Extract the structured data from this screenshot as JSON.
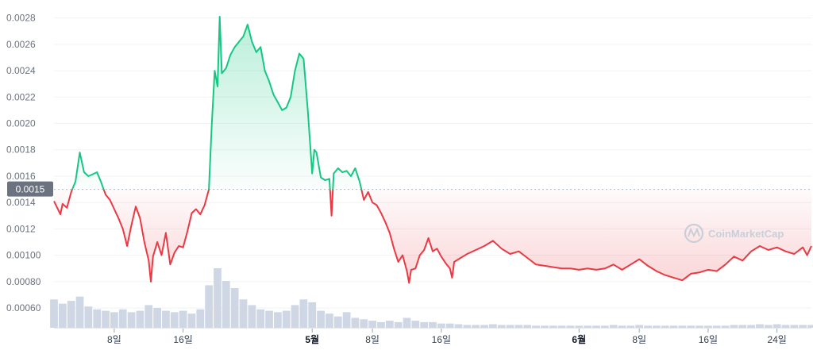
{
  "watermark": "CoinMarketCap",
  "colors": {
    "up": "#16c784",
    "down": "#ea3943",
    "volume": "#cfd6e4",
    "grid": "#eff2f5",
    "baseline": "#b0b8c5",
    "baseline_label_bg": "#6b7280"
  },
  "chart_data": {
    "type": "line",
    "title": "",
    "xlabel": "",
    "ylabel": "",
    "ylim": [
      0.00042,
      0.0029
    ],
    "baseline": 0.0015,
    "baseline_label": "0.0015",
    "y_ticks": [
      {
        "value": 0.0006,
        "label": "0.00060"
      },
      {
        "value": 0.0008,
        "label": "0.00080"
      },
      {
        "value": 0.001,
        "label": "0.00100"
      },
      {
        "value": 0.0012,
        "label": "0.0012"
      },
      {
        "value": 0.0014,
        "label": "0.0014"
      },
      {
        "value": 0.0016,
        "label": "0.0016"
      },
      {
        "value": 0.0018,
        "label": "0.0018"
      },
      {
        "value": 0.002,
        "label": "0.0020"
      },
      {
        "value": 0.0022,
        "label": "0.0022"
      },
      {
        "value": 0.0024,
        "label": "0.0024"
      },
      {
        "value": 0.0026,
        "label": "0.0026"
      },
      {
        "value": 0.0028,
        "label": "0.0028"
      }
    ],
    "x_start": "2023-04-01",
    "x_end": "2023-06-28",
    "x_ticks": [
      {
        "date": "2023-04-08",
        "label": "8일",
        "major": false
      },
      {
        "date": "2023-04-16",
        "label": "16일",
        "major": false
      },
      {
        "date": "2023-05-01",
        "label": "5월",
        "major": true
      },
      {
        "date": "2023-05-08",
        "label": "8일",
        "major": false
      },
      {
        "date": "2023-05-16",
        "label": "16일",
        "major": false
      },
      {
        "date": "2023-06-01",
        "label": "6월",
        "major": true
      },
      {
        "date": "2023-06-08",
        "label": "8일",
        "major": false
      },
      {
        "date": "2023-06-16",
        "label": "16일",
        "major": false
      },
      {
        "date": "2023-06-24",
        "label": "24일",
        "major": false
      }
    ],
    "series": [
      {
        "data": [
          [
            "2023-04-01",
            0.00141
          ],
          [
            "2023-04-01T18:00",
            0.00131
          ],
          [
            "2023-04-02",
            0.00139
          ],
          [
            "2023-04-02T12:00",
            0.00136
          ],
          [
            "2023-04-03",
            0.00148
          ],
          [
            "2023-04-03T12:00",
            0.00156
          ],
          [
            "2023-04-04",
            0.00178
          ],
          [
            "2023-04-04T12:00",
            0.00163
          ],
          [
            "2023-04-05",
            0.0016
          ],
          [
            "2023-04-06",
            0.00163
          ],
          [
            "2023-04-06T12:00",
            0.00155
          ],
          [
            "2023-04-07",
            0.00146
          ],
          [
            "2023-04-07T12:00",
            0.00142
          ],
          [
            "2023-04-08",
            0.00135
          ],
          [
            "2023-04-08T12:00",
            0.00128
          ],
          [
            "2023-04-09",
            0.0012
          ],
          [
            "2023-04-09T12:00",
            0.00107
          ],
          [
            "2023-04-10",
            0.00123
          ],
          [
            "2023-04-10T12:00",
            0.00137
          ],
          [
            "2023-04-11",
            0.00128
          ],
          [
            "2023-04-11T12:00",
            0.0011
          ],
          [
            "2023-04-12",
            0.00096
          ],
          [
            "2023-04-12T06:00",
            0.0008
          ],
          [
            "2023-04-12T12:00",
            0.00099
          ],
          [
            "2023-04-13",
            0.0011
          ],
          [
            "2023-04-13T12:00",
            0.001
          ],
          [
            "2023-04-14",
            0.00117
          ],
          [
            "2023-04-14T12:00",
            0.00093
          ],
          [
            "2023-04-15",
            0.00102
          ],
          [
            "2023-04-15T12:00",
            0.00107
          ],
          [
            "2023-04-16",
            0.00106
          ],
          [
            "2023-04-16T12:00",
            0.00118
          ],
          [
            "2023-04-17",
            0.00132
          ],
          [
            "2023-04-17T12:00",
            0.00135
          ],
          [
            "2023-04-18",
            0.00131
          ],
          [
            "2023-04-18T12:00",
            0.00138
          ],
          [
            "2023-04-19",
            0.0015
          ],
          [
            "2023-04-19T08:00",
            0.002
          ],
          [
            "2023-04-19T16:00",
            0.0024
          ],
          [
            "2023-04-20",
            0.00228
          ],
          [
            "2023-04-20T06:00",
            0.00281
          ],
          [
            "2023-04-20T12:00",
            0.00238
          ],
          [
            "2023-04-21",
            0.00242
          ],
          [
            "2023-04-21T12:00",
            0.00252
          ],
          [
            "2023-04-22",
            0.00258
          ],
          [
            "2023-04-22T12:00",
            0.00262
          ],
          [
            "2023-04-23",
            0.00266
          ],
          [
            "2023-04-23T12:00",
            0.00275
          ],
          [
            "2023-04-24",
            0.00262
          ],
          [
            "2023-04-24T12:00",
            0.00254
          ],
          [
            "2023-04-25",
            0.00258
          ],
          [
            "2023-04-25T12:00",
            0.0024
          ],
          [
            "2023-04-26",
            0.00232
          ],
          [
            "2023-04-26T12:00",
            0.00222
          ],
          [
            "2023-04-27",
            0.00216
          ],
          [
            "2023-04-27T12:00",
            0.0021
          ],
          [
            "2023-04-28",
            0.00212
          ],
          [
            "2023-04-28T12:00",
            0.0022
          ],
          [
            "2023-04-29",
            0.0024
          ],
          [
            "2023-04-29T12:00",
            0.00253
          ],
          [
            "2023-04-30",
            0.00249
          ],
          [
            "2023-04-30T12:00",
            0.00209
          ],
          [
            "2023-05-01",
            0.00162
          ],
          [
            "2023-05-01T06:00",
            0.0018
          ],
          [
            "2023-05-01T12:00",
            0.00178
          ],
          [
            "2023-05-02",
            0.00159
          ],
          [
            "2023-05-02T12:00",
            0.00157
          ],
          [
            "2023-05-03",
            0.00158
          ],
          [
            "2023-05-03T06:00",
            0.0013
          ],
          [
            "2023-05-03T12:00",
            0.00162
          ],
          [
            "2023-05-04",
            0.00166
          ],
          [
            "2023-05-04T12:00",
            0.00163
          ],
          [
            "2023-05-05",
            0.00164
          ],
          [
            "2023-05-05T12:00",
            0.0016
          ],
          [
            "2023-05-06",
            0.00166
          ],
          [
            "2023-05-06T12:00",
            0.00156
          ],
          [
            "2023-05-07",
            0.00142
          ],
          [
            "2023-05-07T12:00",
            0.00148
          ],
          [
            "2023-05-08",
            0.0014
          ],
          [
            "2023-05-08T12:00",
            0.00138
          ],
          [
            "2023-05-09",
            0.00132
          ],
          [
            "2023-05-09T12:00",
            0.00125
          ],
          [
            "2023-05-10",
            0.00117
          ],
          [
            "2023-05-10T12:00",
            0.00105
          ],
          [
            "2023-05-11",
            0.00095
          ],
          [
            "2023-05-11T12:00",
            0.001
          ],
          [
            "2023-05-12",
            0.00088
          ],
          [
            "2023-05-12T06:00",
            0.00079
          ],
          [
            "2023-05-12T12:00",
            0.00089
          ],
          [
            "2023-05-13",
            0.0009
          ],
          [
            "2023-05-13T12:00",
            0.001
          ],
          [
            "2023-05-14",
            0.00104
          ],
          [
            "2023-05-14T12:00",
            0.00113
          ],
          [
            "2023-05-15",
            0.00103
          ],
          [
            "2023-05-15T12:00",
            0.00105
          ],
          [
            "2023-05-16",
            0.00099
          ],
          [
            "2023-05-16T12:00",
            0.00094
          ],
          [
            "2023-05-17",
            0.0009
          ],
          [
            "2023-05-17T06:00",
            0.00083
          ],
          [
            "2023-05-17T12:00",
            0.00095
          ],
          [
            "2023-05-18",
            0.00097
          ],
          [
            "2023-05-18T12:00",
            0.00099
          ],
          [
            "2023-05-19",
            0.00101
          ],
          [
            "2023-05-20",
            0.00104
          ],
          [
            "2023-05-21",
            0.00107
          ],
          [
            "2023-05-22",
            0.00111
          ],
          [
            "2023-05-23",
            0.00105
          ],
          [
            "2023-05-24",
            0.00101
          ],
          [
            "2023-05-25",
            0.00103
          ],
          [
            "2023-05-26",
            0.00098
          ],
          [
            "2023-05-27",
            0.00093
          ],
          [
            "2023-05-28",
            0.00092
          ],
          [
            "2023-05-29",
            0.00091
          ],
          [
            "2023-05-30",
            0.0009
          ],
          [
            "2023-05-31",
            0.0009
          ],
          [
            "2023-06-01",
            0.00089
          ],
          [
            "2023-06-02",
            0.0009
          ],
          [
            "2023-06-03",
            0.00089
          ],
          [
            "2023-06-04",
            0.0009
          ],
          [
            "2023-06-05",
            0.00093
          ],
          [
            "2023-06-06",
            0.00089
          ],
          [
            "2023-06-07",
            0.00093
          ],
          [
            "2023-06-08",
            0.00097
          ],
          [
            "2023-06-09",
            0.00092
          ],
          [
            "2023-06-10",
            0.00088
          ],
          [
            "2023-06-11",
            0.00085
          ],
          [
            "2023-06-12",
            0.00083
          ],
          [
            "2023-06-13",
            0.00081
          ],
          [
            "2023-06-14",
            0.00086
          ],
          [
            "2023-06-15",
            0.00087
          ],
          [
            "2023-06-16",
            0.00089
          ],
          [
            "2023-06-17",
            0.00088
          ],
          [
            "2023-06-18",
            0.00093
          ],
          [
            "2023-06-19",
            0.00099
          ],
          [
            "2023-06-20",
            0.00096
          ],
          [
            "2023-06-21",
            0.00103
          ],
          [
            "2023-06-22",
            0.00107
          ],
          [
            "2023-06-23",
            0.00104
          ],
          [
            "2023-06-24",
            0.00106
          ],
          [
            "2023-06-25",
            0.00103
          ],
          [
            "2023-06-26",
            0.00101
          ],
          [
            "2023-06-27",
            0.00106
          ],
          [
            "2023-06-27T12:00",
            0.001
          ],
          [
            "2023-06-28",
            0.00107
          ]
        ]
      }
    ],
    "volume": [
      [
        "2023-04-01",
        0.2
      ],
      [
        "2023-04-02",
        0.17
      ],
      [
        "2023-04-03",
        0.19
      ],
      [
        "2023-04-04",
        0.22
      ],
      [
        "2023-04-05",
        0.15
      ],
      [
        "2023-04-06",
        0.13
      ],
      [
        "2023-04-07",
        0.12
      ],
      [
        "2023-04-08",
        0.11
      ],
      [
        "2023-04-09",
        0.13
      ],
      [
        "2023-04-10",
        0.11
      ],
      [
        "2023-04-11",
        0.12
      ],
      [
        "2023-04-12",
        0.16
      ],
      [
        "2023-04-13",
        0.14
      ],
      [
        "2023-04-14",
        0.12
      ],
      [
        "2023-04-15",
        0.11
      ],
      [
        "2023-04-16",
        0.12
      ],
      [
        "2023-04-17",
        0.1
      ],
      [
        "2023-04-18",
        0.13
      ],
      [
        "2023-04-19",
        0.3
      ],
      [
        "2023-04-20",
        0.42
      ],
      [
        "2023-04-21",
        0.33
      ],
      [
        "2023-04-22",
        0.28
      ],
      [
        "2023-04-23",
        0.2
      ],
      [
        "2023-04-24",
        0.16
      ],
      [
        "2023-04-25",
        0.13
      ],
      [
        "2023-04-26",
        0.12
      ],
      [
        "2023-04-27",
        0.11
      ],
      [
        "2023-04-28",
        0.12
      ],
      [
        "2023-04-29",
        0.16
      ],
      [
        "2023-04-30",
        0.2
      ],
      [
        "2023-05-01",
        0.18
      ],
      [
        "2023-05-02",
        0.12
      ],
      [
        "2023-05-03",
        0.1
      ],
      [
        "2023-05-04",
        0.08
      ],
      [
        "2023-05-05",
        0.11
      ],
      [
        "2023-05-06",
        0.07
      ],
      [
        "2023-05-07",
        0.06
      ],
      [
        "2023-05-08",
        0.05
      ],
      [
        "2023-05-09",
        0.04
      ],
      [
        "2023-05-10",
        0.05
      ],
      [
        "2023-05-11",
        0.04
      ],
      [
        "2023-05-12",
        0.07
      ],
      [
        "2023-05-13",
        0.05
      ],
      [
        "2023-05-14",
        0.04
      ],
      [
        "2023-05-15",
        0.04
      ],
      [
        "2023-05-16",
        0.03
      ],
      [
        "2023-05-17",
        0.03
      ],
      [
        "2023-05-18",
        0.025
      ],
      [
        "2023-05-19",
        0.02
      ],
      [
        "2023-05-20",
        0.02
      ],
      [
        "2023-05-21",
        0.02
      ],
      [
        "2023-05-22",
        0.025
      ],
      [
        "2023-05-23",
        0.02
      ],
      [
        "2023-05-24",
        0.02
      ],
      [
        "2023-05-25",
        0.02
      ],
      [
        "2023-05-26",
        0.02
      ],
      [
        "2023-05-27",
        0.015
      ],
      [
        "2023-05-28",
        0.015
      ],
      [
        "2023-05-29",
        0.015
      ],
      [
        "2023-05-30",
        0.015
      ],
      [
        "2023-05-31",
        0.015
      ],
      [
        "2023-06-01",
        0.015
      ],
      [
        "2023-06-02",
        0.015
      ],
      [
        "2023-06-03",
        0.015
      ],
      [
        "2023-06-04",
        0.015
      ],
      [
        "2023-06-05",
        0.02
      ],
      [
        "2023-06-06",
        0.015
      ],
      [
        "2023-06-07",
        0.015
      ],
      [
        "2023-06-08",
        0.02
      ],
      [
        "2023-06-09",
        0.015
      ],
      [
        "2023-06-10",
        0.015
      ],
      [
        "2023-06-11",
        0.015
      ],
      [
        "2023-06-12",
        0.015
      ],
      [
        "2023-06-13",
        0.015
      ],
      [
        "2023-06-14",
        0.015
      ],
      [
        "2023-06-15",
        0.015
      ],
      [
        "2023-06-16",
        0.015
      ],
      [
        "2023-06-17",
        0.015
      ],
      [
        "2023-06-18",
        0.015
      ],
      [
        "2023-06-19",
        0.02
      ],
      [
        "2023-06-20",
        0.02
      ],
      [
        "2023-06-21",
        0.02
      ],
      [
        "2023-06-22",
        0.025
      ],
      [
        "2023-06-23",
        0.02
      ],
      [
        "2023-06-24",
        0.025
      ],
      [
        "2023-06-25",
        0.02
      ],
      [
        "2023-06-26",
        0.02
      ],
      [
        "2023-06-27",
        0.02
      ],
      [
        "2023-06-28",
        0.02
      ]
    ]
  }
}
